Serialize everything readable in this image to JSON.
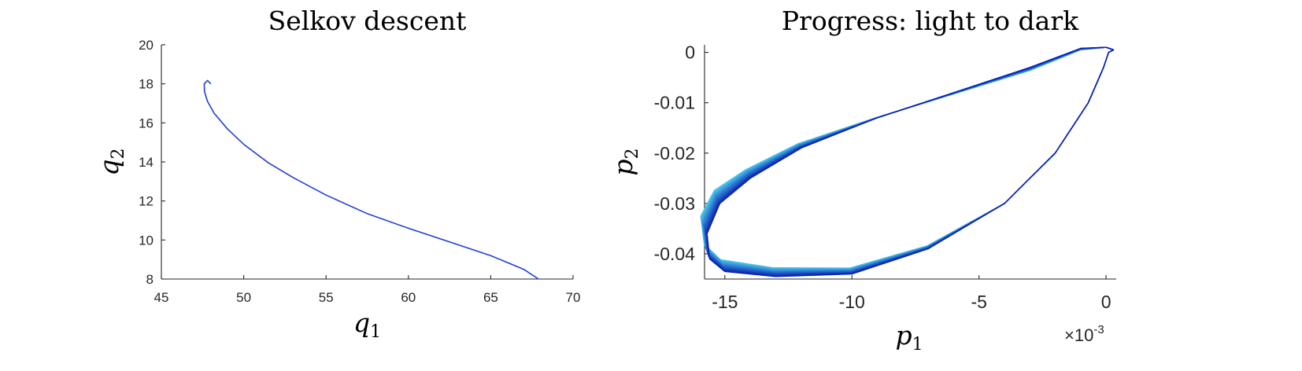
{
  "chart_data": [
    {
      "type": "line",
      "title": "Selkov descent",
      "xlabel": "q1",
      "ylabel": "q2",
      "xlim": [
        45,
        70
      ],
      "ylim": [
        8,
        20
      ],
      "xticks": [
        45,
        50,
        55,
        60,
        65,
        70
      ],
      "yticks": [
        8,
        10,
        12,
        14,
        16,
        18,
        20
      ],
      "grid": false,
      "series": [
        {
          "color": "#1f3fd6",
          "x": [
            48.0,
            47.8,
            47.6,
            47.62,
            47.8,
            48.2,
            49.0,
            50.0,
            51.5,
            53.0,
            55.0,
            57.5,
            60.0,
            62.5,
            65.0,
            67.0,
            67.9
          ],
          "y": [
            18.0,
            18.17,
            18.0,
            17.6,
            17.1,
            16.5,
            15.7,
            14.9,
            13.95,
            13.2,
            12.3,
            11.35,
            10.6,
            9.9,
            9.2,
            8.5,
            8.0
          ]
        }
      ]
    },
    {
      "type": "line",
      "title": "Progress: light to dark",
      "xlabel": "p1",
      "ylabel": "p2",
      "x_exponent_label": "×10-3",
      "xlim": [
        -15.8,
        0.4
      ],
      "ylim": [
        -0.045,
        0.0015
      ],
      "xticks": [
        -15,
        -10,
        -5,
        0
      ],
      "yticks": [
        0,
        -0.01,
        -0.02,
        -0.03,
        -0.04
      ],
      "grid": false,
      "color_progression": [
        "#48c6ec",
        "#0a20b0"
      ],
      "series": [
        {
          "name": "",
          "x": [
            0.3,
            0.0,
            -1.0,
            -3.0,
            -6.0,
            -9.0,
            -12.0,
            -14.0,
            -15.2,
            -15.7,
            -15.6,
            -15.0,
            -13.0,
            -10.0,
            -7.0,
            -4.0,
            -2.0,
            -0.7,
            -0.1,
            0.1,
            0.3
          ],
          "y": [
            0.0005,
            0.001,
            0.0008,
            -0.003,
            -0.008,
            -0.013,
            -0.019,
            -0.025,
            -0.03,
            -0.036,
            -0.041,
            -0.0435,
            -0.0445,
            -0.044,
            -0.039,
            -0.03,
            -0.02,
            -0.01,
            -0.003,
            0.0,
            0.0005
          ]
        }
      ]
    }
  ]
}
